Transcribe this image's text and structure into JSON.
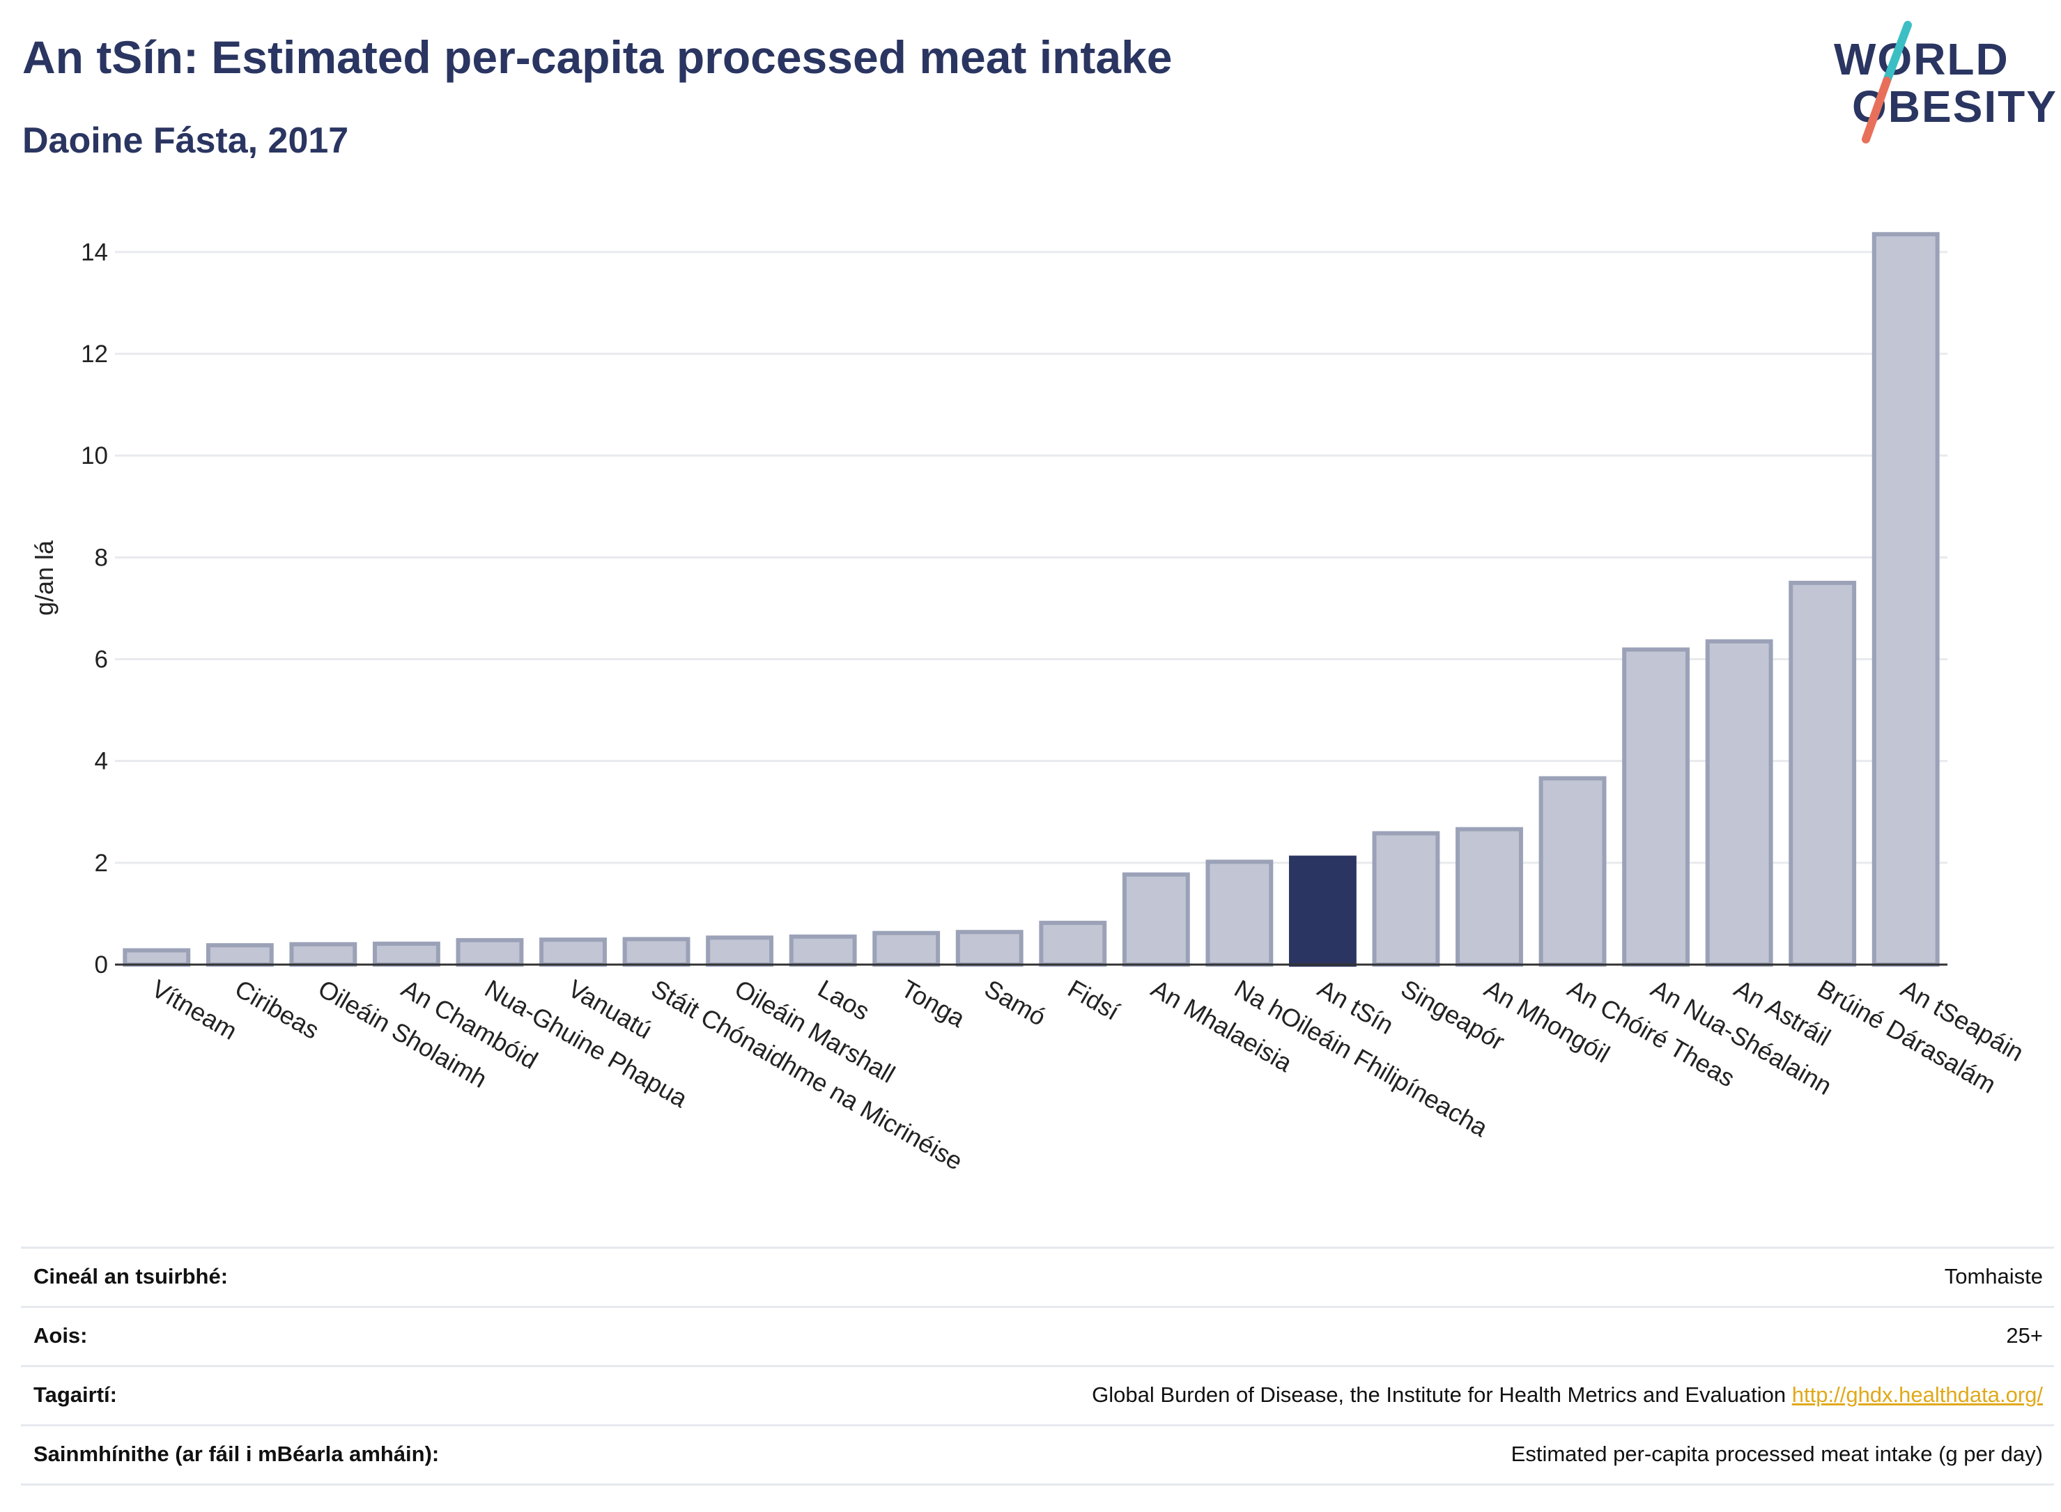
{
  "header": {
    "title": "An tSín: Estimated per-capita processed meat intake",
    "subtitle": "Daoine Fásta, 2017"
  },
  "logo": {
    "line1": "WORLD",
    "line2": "OBESITY",
    "colors": {
      "text": "#2a3561",
      "slash_top": "#3bbfc4",
      "slash_bottom": "#e8705a"
    }
  },
  "colors": {
    "bar": "#c2c5d3",
    "bar_stroke": "#9ba2b8",
    "highlight": "#2a3561",
    "grid": "#e8eaee",
    "axis": "#333333"
  },
  "chart_data": {
    "type": "bar",
    "ylabel": "g/an lá",
    "ylim": [
      0,
      14.6
    ],
    "yticks": [
      0,
      2,
      4,
      6,
      8,
      10,
      12,
      14
    ],
    "grid": true,
    "highlight": "An tSín",
    "categories": [
      "Vítneam",
      "Ciribeas",
      "Oileáin Sholaimh",
      "An Chambóid",
      "Nua-Ghuine Phapua",
      "Vanuatú",
      "Stáit Chónaidhme na Micrinéise",
      "Oileáin Marshall",
      "Laos",
      "Tonga",
      "Samó",
      "Fidsí",
      "An Mhalaeisia",
      "Na hOileáin Fhilipíneacha",
      "An tSín",
      "Singeapór",
      "An Mhongóil",
      "An Chóiré Theas",
      "An Nua-Shéalainn",
      "An Astráil",
      "Brúiné Dárasalám",
      "An tSeapáin"
    ],
    "values": [
      0.28,
      0.38,
      0.4,
      0.41,
      0.48,
      0.49,
      0.5,
      0.53,
      0.55,
      0.62,
      0.64,
      0.82,
      1.77,
      2.02,
      2.1,
      2.58,
      2.66,
      3.66,
      6.19,
      6.35,
      7.5,
      14.35
    ]
  },
  "meta": [
    {
      "label": "Cineál an tsuirbhé:",
      "value": "Tomhaiste"
    },
    {
      "label": "Aois:",
      "value": "25+"
    },
    {
      "label": "Tagairtí:",
      "value": "Global Burden of Disease, the Institute for Health Metrics and Evaluation",
      "link": "http://ghdx.healthdata.org/"
    },
    {
      "label": "Sainmhínithe (ar fáil i mBéarla amháin):",
      "value": "Estimated per-capita processed meat intake (g per day)"
    }
  ]
}
